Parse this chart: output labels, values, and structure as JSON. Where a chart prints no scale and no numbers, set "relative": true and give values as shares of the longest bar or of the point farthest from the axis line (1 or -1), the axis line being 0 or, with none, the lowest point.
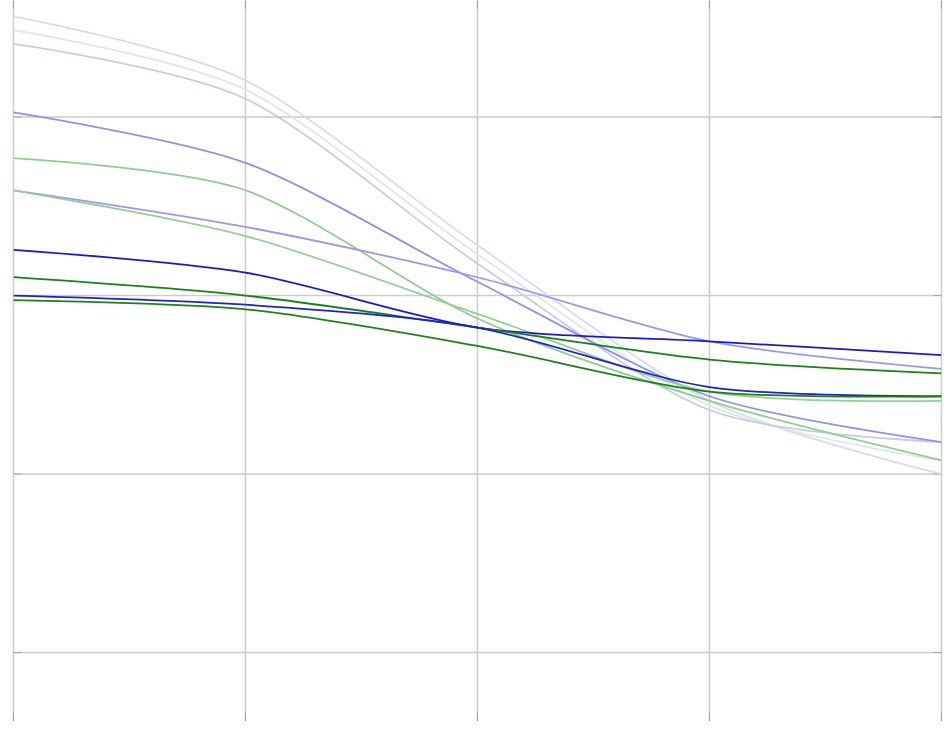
{
  "chart_data": {
    "type": "line",
    "relative": true,
    "grid": true,
    "categories": [
      null,
      null,
      null,
      null,
      null
    ],
    "series": [
      {
        "color": "#d4dcee",
        "values": [
          1.0,
          0.86,
          0.5,
          0.16,
          0.0
        ]
      },
      {
        "color": "#dde8e2",
        "values": [
          0.97,
          0.84,
          0.48,
          0.15,
          0.03
        ]
      },
      {
        "color": "#c4cee0",
        "values": [
          0.94,
          0.82,
          0.46,
          0.14,
          0.07
        ]
      },
      {
        "color": "#9090ee",
        "values": [
          0.79,
          0.68,
          0.42,
          0.17,
          0.07
        ]
      },
      {
        "color": "#90cc90",
        "values": [
          0.69,
          0.62,
          0.34,
          0.16,
          0.03
        ]
      },
      {
        "color": "#9898ee",
        "values": [
          0.62,
          0.54,
          0.43,
          0.29,
          0.23
        ]
      },
      {
        "color": "#98cc98",
        "values": [
          0.62,
          0.52,
          0.35,
          0.18,
          0.16
        ]
      },
      {
        "color": "#1a1acc",
        "values": [
          0.49,
          0.44,
          0.32,
          0.29,
          0.26
        ]
      },
      {
        "color": "#1a801a",
        "values": [
          0.43,
          0.39,
          0.32,
          0.25,
          0.22
        ]
      },
      {
        "color": "#2020cc",
        "values": [
          0.39,
          0.37,
          0.32,
          0.19,
          0.17
        ]
      },
      {
        "color": "#1a801a",
        "values": [
          0.38,
          0.36,
          0.28,
          0.18,
          0.17
        ]
      }
    ]
  }
}
